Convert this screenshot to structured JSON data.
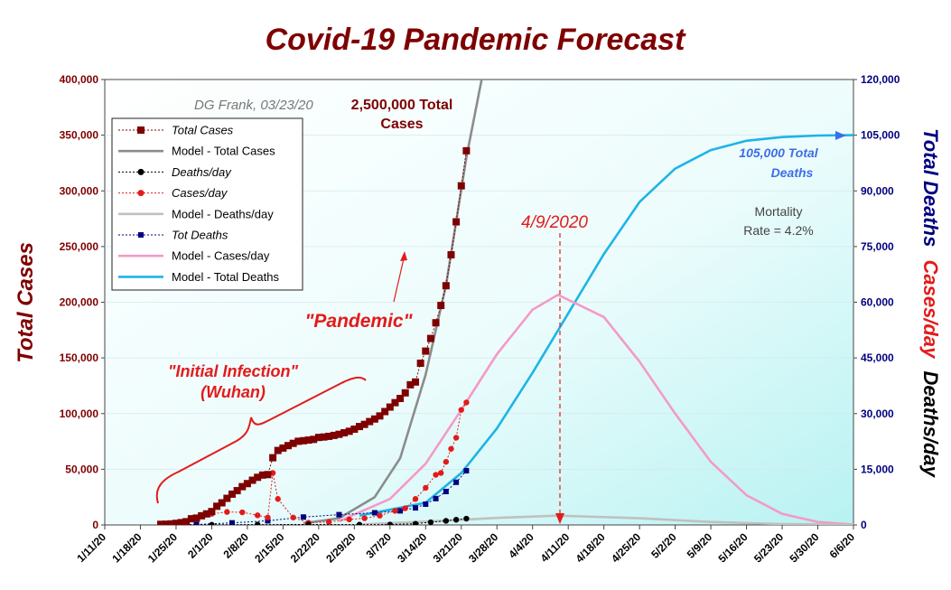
{
  "chart_data": {
    "type": "line",
    "title": "Covid-19 Pandemic Forecast",
    "author": "DG Frank, 03/23/20",
    "ylabel_left": "Total Cases",
    "ylabel_right_parts": [
      "Total Deaths",
      "Cases/day",
      "Deaths/day"
    ],
    "ylim_left": [
      0,
      400000
    ],
    "ylim_right": [
      0,
      120000
    ],
    "yticks_left": [
      "0",
      "50,000",
      "100,000",
      "150,000",
      "200,000",
      "250,000",
      "300,000",
      "350,000",
      "400,000"
    ],
    "yticks_right": [
      "0",
      "15,000",
      "30,000",
      "45,000",
      "60,000",
      "75,000",
      "90,000",
      "105,000",
      "120,000"
    ],
    "xticks": [
      "1/11/20",
      "1/18/20",
      "1/25/20",
      "2/1/20",
      "2/8/20",
      "2/15/20",
      "2/22/20",
      "2/29/20",
      "3/7/20",
      "3/14/20",
      "3/21/20",
      "3/28/20",
      "4/4/20",
      "4/11/20",
      "4/18/20",
      "4/25/20",
      "5/2/20",
      "5/9/20",
      "5/16/20",
      "5/23/20",
      "5/30/20",
      "6/6/20"
    ],
    "x_start": "1/11/20",
    "x_end": "6/6/20",
    "grid": true,
    "legend_position": "top-left",
    "colors": {
      "total_cases": "#7f0000",
      "model_total_cases": "#8c8c8c",
      "deaths_day": "#000000",
      "cases_day": "#e41a1a",
      "model_deaths_day": "#c0c0c0",
      "tot_deaths": "#000080",
      "model_cases_day": "#f49ac8",
      "model_total_deaths": "#1eb4e6",
      "plot_bg": "#e8fcfc",
      "title": "#7f0000"
    },
    "series": [
      {
        "name": "Total Cases",
        "axis": "left",
        "style": "marker-square",
        "x": [
          "1/22/20",
          "1/23/20",
          "1/24/20",
          "1/25/20",
          "1/26/20",
          "1/27/20",
          "1/28/20",
          "1/29/20",
          "1/30/20",
          "1/31/20",
          "2/1/20",
          "2/2/20",
          "2/3/20",
          "2/4/20",
          "2/5/20",
          "2/6/20",
          "2/7/20",
          "2/8/20",
          "2/9/20",
          "2/10/20",
          "2/11/20",
          "2/12/20",
          "2/13/20",
          "2/14/20",
          "2/15/20",
          "2/16/20",
          "2/17/20",
          "2/18/20",
          "2/19/20",
          "2/20/20",
          "2/21/20",
          "2/22/20",
          "2/23/20",
          "2/24/20",
          "2/25/20",
          "2/26/20",
          "2/27/20",
          "2/28/20",
          "2/29/20",
          "3/1/20",
          "3/2/20",
          "3/3/20",
          "3/4/20",
          "3/5/20",
          "3/6/20",
          "3/7/20",
          "3/8/20",
          "3/9/20",
          "3/10/20",
          "3/11/20",
          "3/12/20",
          "3/13/20",
          "3/14/20",
          "3/15/20",
          "3/16/20",
          "3/17/20",
          "3/18/20",
          "3/19/20",
          "3/20/20",
          "3/21/20",
          "3/22/20"
        ],
        "values": [
          555,
          654,
          941,
          1434,
          2118,
          2927,
          5578,
          6166,
          8234,
          9927,
          12038,
          16787,
          19881,
          23892,
          27635,
          30794,
          34391,
          37120,
          40150,
          42762,
          44802,
          45221,
          60368,
          66885,
          69030,
          71224,
          73258,
          75136,
          75639,
          76197,
          76819,
          78572,
          78958,
          79561,
          80406,
          81388,
          82746,
          84112,
          86011,
          88369,
          90306,
          92840,
          95120,
          97886,
          101801,
          105847,
          109821,
          113590,
          118620,
          125875,
          128352,
          145205,
          156101,
          167454,
          181574,
          197102,
          214821,
          242570,
          272166,
          304524,
          336004
        ]
      },
      {
        "name": "Model - Total Cases",
        "axis": "left",
        "style": "line",
        "x": [
          "2/19/20",
          "2/26/20",
          "3/4/20",
          "3/9/20",
          "3/14/20",
          "3/18/20",
          "3/22/20",
          "3/25/20",
          "3/28/20"
        ],
        "values": [
          1500,
          6000,
          25000,
          60000,
          135000,
          215000,
          330000,
          400000,
          420000
        ]
      },
      {
        "name": "Deaths/day",
        "axis": "right",
        "style": "marker-dot",
        "x": [
          "1/22/20",
          "2/1/20",
          "2/10/20",
          "2/20/20",
          "3/1/20",
          "3/7/20",
          "3/12/20",
          "3/15/20",
          "3/18/20",
          "3/20/20",
          "3/22/20"
        ],
        "values": [
          10,
          45,
          100,
          120,
          70,
          100,
          330,
          720,
          1100,
          1400,
          1700
        ]
      },
      {
        "name": "Cases/day",
        "axis": "right",
        "style": "marker-dot",
        "x": [
          "1/22/20",
          "1/26/20",
          "1/29/20",
          "2/1/20",
          "2/4/20",
          "2/7/20",
          "2/10/20",
          "2/12/20",
          "2/13/20",
          "2/14/20",
          "2/17/20",
          "2/20/20",
          "2/24/20",
          "2/28/20",
          "3/2/20",
          "3/5/20",
          "3/8/20",
          "3/10/20",
          "3/12/20",
          "3/14/20",
          "3/16/20",
          "3/17/20",
          "3/18/20",
          "3/19/20",
          "3/20/20",
          "3/21/20",
          "3/22/20"
        ],
        "values": [
          100,
          700,
          1800,
          3000,
          3500,
          3400,
          2600,
          2000,
          14000,
          7000,
          2000,
          600,
          800,
          1500,
          1800,
          2500,
          3800,
          4500,
          7000,
          10000,
          13500,
          14000,
          17000,
          20500,
          23500,
          31000,
          33000
        ]
      },
      {
        "name": "Model - Deaths/day",
        "axis": "right",
        "style": "line",
        "x": [
          "3/1/20",
          "3/14/20",
          "3/28/20",
          "4/9/20",
          "4/25/20",
          "5/9/20",
          "5/23/20",
          "6/6/20"
        ],
        "values": [
          100,
          900,
          1900,
          2500,
          1800,
          800,
          250,
          50
        ]
      },
      {
        "name": "Tot Deaths",
        "axis": "right",
        "style": "marker-square-small",
        "x": [
          "1/22/20",
          "1/29/20",
          "2/5/20",
          "2/12/20",
          "2/19/20",
          "2/26/20",
          "3/4/20",
          "3/9/20",
          "3/12/20",
          "3/14/20",
          "3/16/20",
          "3/18/20",
          "3/20/20",
          "3/22/20"
        ],
        "values": [
          17,
          132,
          565,
          1117,
          2126,
          2770,
          3284,
          3800,
          4600,
          5600,
          7100,
          9000,
          11500,
          14600
        ]
      },
      {
        "name": "Model - Cases/day",
        "axis": "right",
        "style": "line",
        "x": [
          "2/26/20",
          "3/7/20",
          "3/14/20",
          "3/21/20",
          "3/28/20",
          "4/4/20",
          "4/9/20",
          "4/18/20",
          "4/25/20",
          "5/2/20",
          "5/9/20",
          "5/16/20",
          "5/23/20",
          "5/30/20",
          "6/6/20"
        ],
        "values": [
          1000,
          7000,
          16500,
          31000,
          46000,
          58000,
          62000,
          56000,
          44000,
          30000,
          17000,
          8000,
          3000,
          800,
          100
        ]
      },
      {
        "name": "Model - Total Deaths",
        "axis": "right",
        "style": "line",
        "x": [
          "3/1/20",
          "3/14/20",
          "3/21/20",
          "3/28/20",
          "4/4/20",
          "4/11/20",
          "4/18/20",
          "4/25/20",
          "5/2/20",
          "5/9/20",
          "5/16/20",
          "5/23/20",
          "5/30/20",
          "6/6/20"
        ],
        "values": [
          2500,
          6000,
          14000,
          26000,
          41000,
          57000,
          73000,
          87000,
          96000,
          101000,
          103500,
          104500,
          104900,
          105000
        ]
      }
    ],
    "annotations": {
      "total_cases_peak": [
        "2,500,000 Total",
        "Cases"
      ],
      "pandemic": "\"Pandemic\"",
      "initial_infection": [
        "\"Initial Infection\"",
        "(Wuhan)"
      ],
      "peak_date": "4/9/2020",
      "total_deaths": [
        "105,000 Total",
        "Deaths"
      ],
      "mortality": [
        "Mortality",
        "Rate = 4.2%"
      ]
    }
  }
}
